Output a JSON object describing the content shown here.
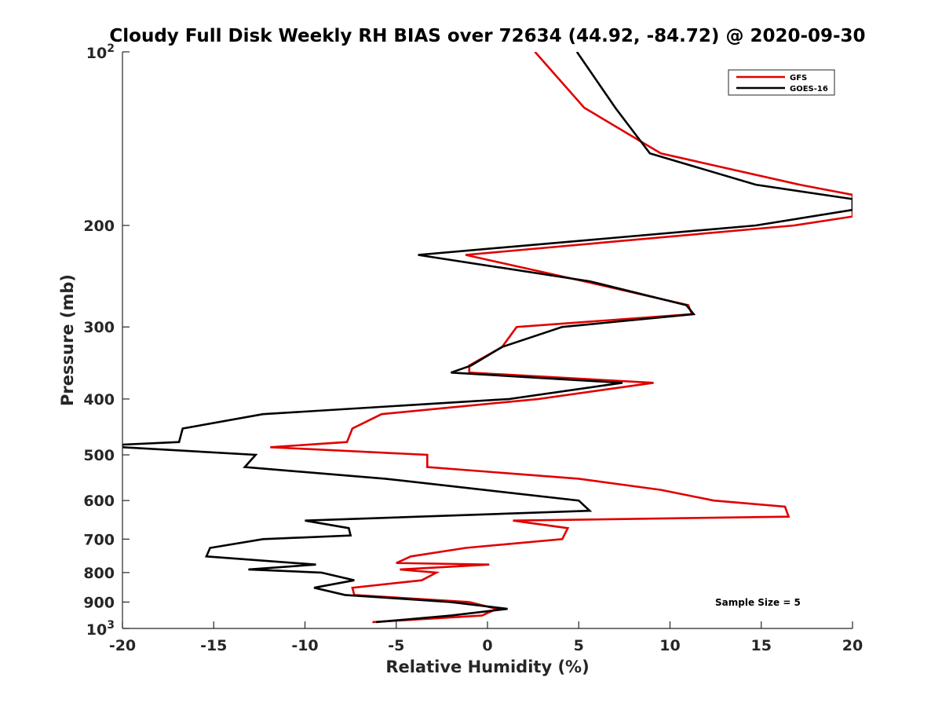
{
  "chart_data": {
    "type": "line",
    "title": "Cloudy Full Disk Weekly RH BIAS over 72634 (44.92, -84.72) @ 2020-09-30",
    "xlabel": "Relative Humidity (%)",
    "ylabel": "Pressure (mb)",
    "xlim": [
      -20,
      20
    ],
    "ylim": [
      100,
      1000
    ],
    "y_scale": "log",
    "y_reversed": true,
    "x_ticks": [
      "-20",
      "-15",
      "-10",
      "-5",
      "0",
      "5",
      "10",
      "15",
      "20"
    ],
    "y_ticks": [
      "200",
      "300",
      "400",
      "500",
      "600",
      "700",
      "800",
      "900"
    ],
    "y_top_label": {
      "base": "10",
      "exp": "2"
    },
    "y_bottom_label": {
      "base": "10",
      "exp": "3"
    },
    "legend_position": "top-right",
    "annotation": "Sample Size = 5",
    "series": [
      {
        "name": "GFS",
        "color": "#e00000",
        "points": [
          [
            2.6,
            100
          ],
          [
            5.3,
            125
          ],
          [
            9.5,
            150
          ],
          [
            17.1,
            170
          ],
          [
            20.0,
            177
          ],
          [
            20.0,
            193
          ],
          [
            16.8,
            200
          ],
          [
            -1.2,
            225
          ],
          [
            5.3,
            250
          ],
          [
            11.0,
            275
          ],
          [
            11.2,
            285
          ],
          [
            1.6,
            300
          ],
          [
            0.8,
            325
          ],
          [
            -1.0,
            350
          ],
          [
            -1.0,
            360
          ],
          [
            9.1,
            375
          ],
          [
            2.8,
            400
          ],
          [
            -5.8,
            425
          ],
          [
            -7.4,
            450
          ],
          [
            -7.7,
            475
          ],
          [
            -11.9,
            485
          ],
          [
            -3.3,
            500
          ],
          [
            -3.3,
            525
          ],
          [
            5.0,
            550
          ],
          [
            9.5,
            575
          ],
          [
            12.4,
            600
          ],
          [
            16.3,
            615
          ],
          [
            16.5,
            640
          ],
          [
            1.4,
            650
          ],
          [
            4.4,
            670
          ],
          [
            4.1,
            700
          ],
          [
            -1.2,
            725
          ],
          [
            -4.2,
            750
          ],
          [
            -5.0,
            770
          ],
          [
            0.1,
            775
          ],
          [
            -4.8,
            790
          ],
          [
            -2.8,
            800
          ],
          [
            -3.6,
            825
          ],
          [
            -7.4,
            850
          ],
          [
            -7.3,
            875
          ],
          [
            -1.0,
            900
          ],
          [
            0.5,
            925
          ],
          [
            -0.3,
            950
          ],
          [
            -6.3,
            975
          ]
        ]
      },
      {
        "name": "GOES-16",
        "color": "#000000",
        "points": [
          [
            4.9,
            100
          ],
          [
            7.0,
            125
          ],
          [
            8.9,
            150
          ],
          [
            14.7,
            170
          ],
          [
            20.0,
            180
          ],
          [
            20.0,
            188
          ],
          [
            14.7,
            200
          ],
          [
            -3.8,
            225
          ],
          [
            5.6,
            250
          ],
          [
            10.9,
            275
          ],
          [
            11.3,
            285
          ],
          [
            4.1,
            300
          ],
          [
            0.8,
            325
          ],
          [
            -0.9,
            350
          ],
          [
            -2.0,
            360
          ],
          [
            7.4,
            375
          ],
          [
            1.2,
            400
          ],
          [
            -12.3,
            425
          ],
          [
            -16.7,
            450
          ],
          [
            -16.9,
            475
          ],
          [
            -20.0,
            480
          ],
          [
            -20.0,
            485
          ],
          [
            -12.7,
            500
          ],
          [
            -13.3,
            525
          ],
          [
            -5.6,
            550
          ],
          [
            -0.2,
            575
          ],
          [
            5.0,
            600
          ],
          [
            5.6,
            625
          ],
          [
            -10.0,
            650
          ],
          [
            -7.6,
            670
          ],
          [
            -7.5,
            690
          ],
          [
            -12.3,
            700
          ],
          [
            -15.2,
            725
          ],
          [
            -15.4,
            750
          ],
          [
            -9.4,
            775
          ],
          [
            -13.1,
            790
          ],
          [
            -9.1,
            800
          ],
          [
            -7.3,
            825
          ],
          [
            -9.5,
            850
          ],
          [
            -7.8,
            875
          ],
          [
            -2.0,
            900
          ],
          [
            1.1,
            925
          ],
          [
            -2.0,
            950
          ],
          [
            -6.1,
            975
          ]
        ]
      }
    ]
  }
}
